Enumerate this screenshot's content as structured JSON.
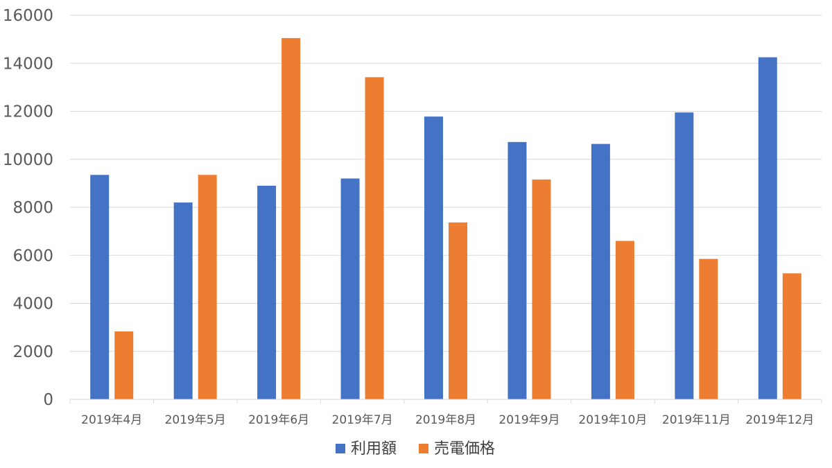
{
  "chart_data": {
    "type": "bar",
    "title": "",
    "xlabel": "",
    "ylabel": "",
    "categories": [
      "2019年4月",
      "2019年5月",
      "2019年6月",
      "2019年7月",
      "2019年8月",
      "2019年9月",
      "2019年10月",
      "2019年11月",
      "2019年12月"
    ],
    "series": [
      {
        "name": "利用額",
        "color": "#4472c4",
        "values": [
          9350,
          8200,
          8900,
          9200,
          11780,
          10720,
          10640,
          11950,
          14250
        ]
      },
      {
        "name": "売電価格",
        "color": "#ed7d31",
        "values": [
          2830,
          9350,
          15050,
          13420,
          7370,
          9160,
          6600,
          5850,
          5250
        ]
      }
    ],
    "ylim": [
      0,
      16000
    ],
    "yticks": [
      "0",
      "2000",
      "4000",
      "6000",
      "8000",
      "10000",
      "12000",
      "14000",
      "16000"
    ],
    "grid": true,
    "legend_position": "bottom"
  }
}
